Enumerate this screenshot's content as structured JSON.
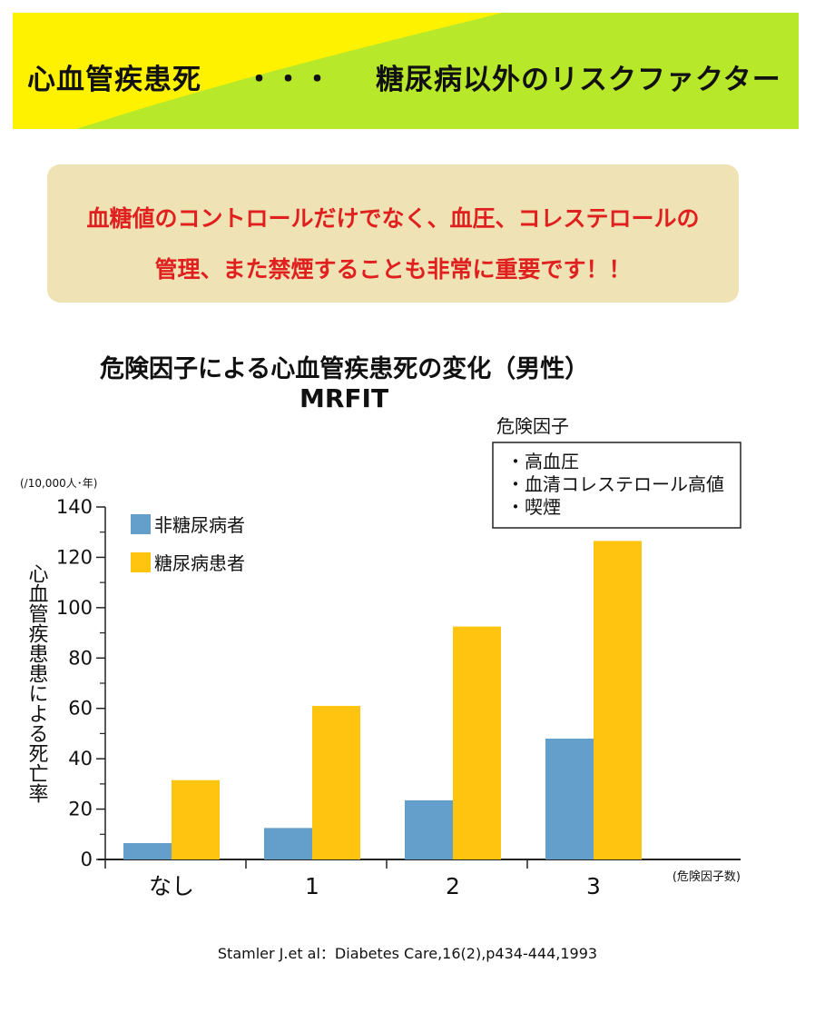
{
  "banner": {
    "title": "心血管疾患死",
    "dots": "・・・",
    "subtitle": "糖尿病以外のリスクファクター",
    "colors": {
      "yellow": "#fff200",
      "green": "#b8e82a"
    }
  },
  "message": {
    "line1": "血糖値のコントロールだけでなく、血圧、コレステロールの",
    "line2": "管理、また禁煙することも非常に重要です！！",
    "text_color": "#e0201e",
    "bg_color": "#efe3b6"
  },
  "citation": "Stamler J.et al：Diabetes Care,16(2),p434-444,1993",
  "chart_data": {
    "type": "bar",
    "title": "危険因子による心血管疾患死の変化（男性）",
    "subtitle": "MRFIT",
    "ylabel": "心血管疾患患による死亡率",
    "yunit": "(/10,000人･年)",
    "xunit": "(危険因子数)",
    "categories": [
      "なし",
      "1",
      "2",
      "3"
    ],
    "ylim": [
      0,
      140
    ],
    "yticks": [
      0,
      20,
      40,
      60,
      80,
      100,
      120,
      140
    ],
    "grid": false,
    "legend_position": "top-left",
    "series": [
      {
        "name": "非糖尿病者",
        "color": "#649fcb",
        "values": [
          6.5,
          12.5,
          23.5,
          48
        ]
      },
      {
        "name": "糖尿病患者",
        "color": "#fec40f",
        "values": [
          31.5,
          61,
          92.5,
          126.5
        ]
      }
    ],
    "risk_box": {
      "heading": "危険因子",
      "items": [
        "・高血圧",
        "・血清コレステロール高値",
        "・喫煙"
      ]
    }
  }
}
